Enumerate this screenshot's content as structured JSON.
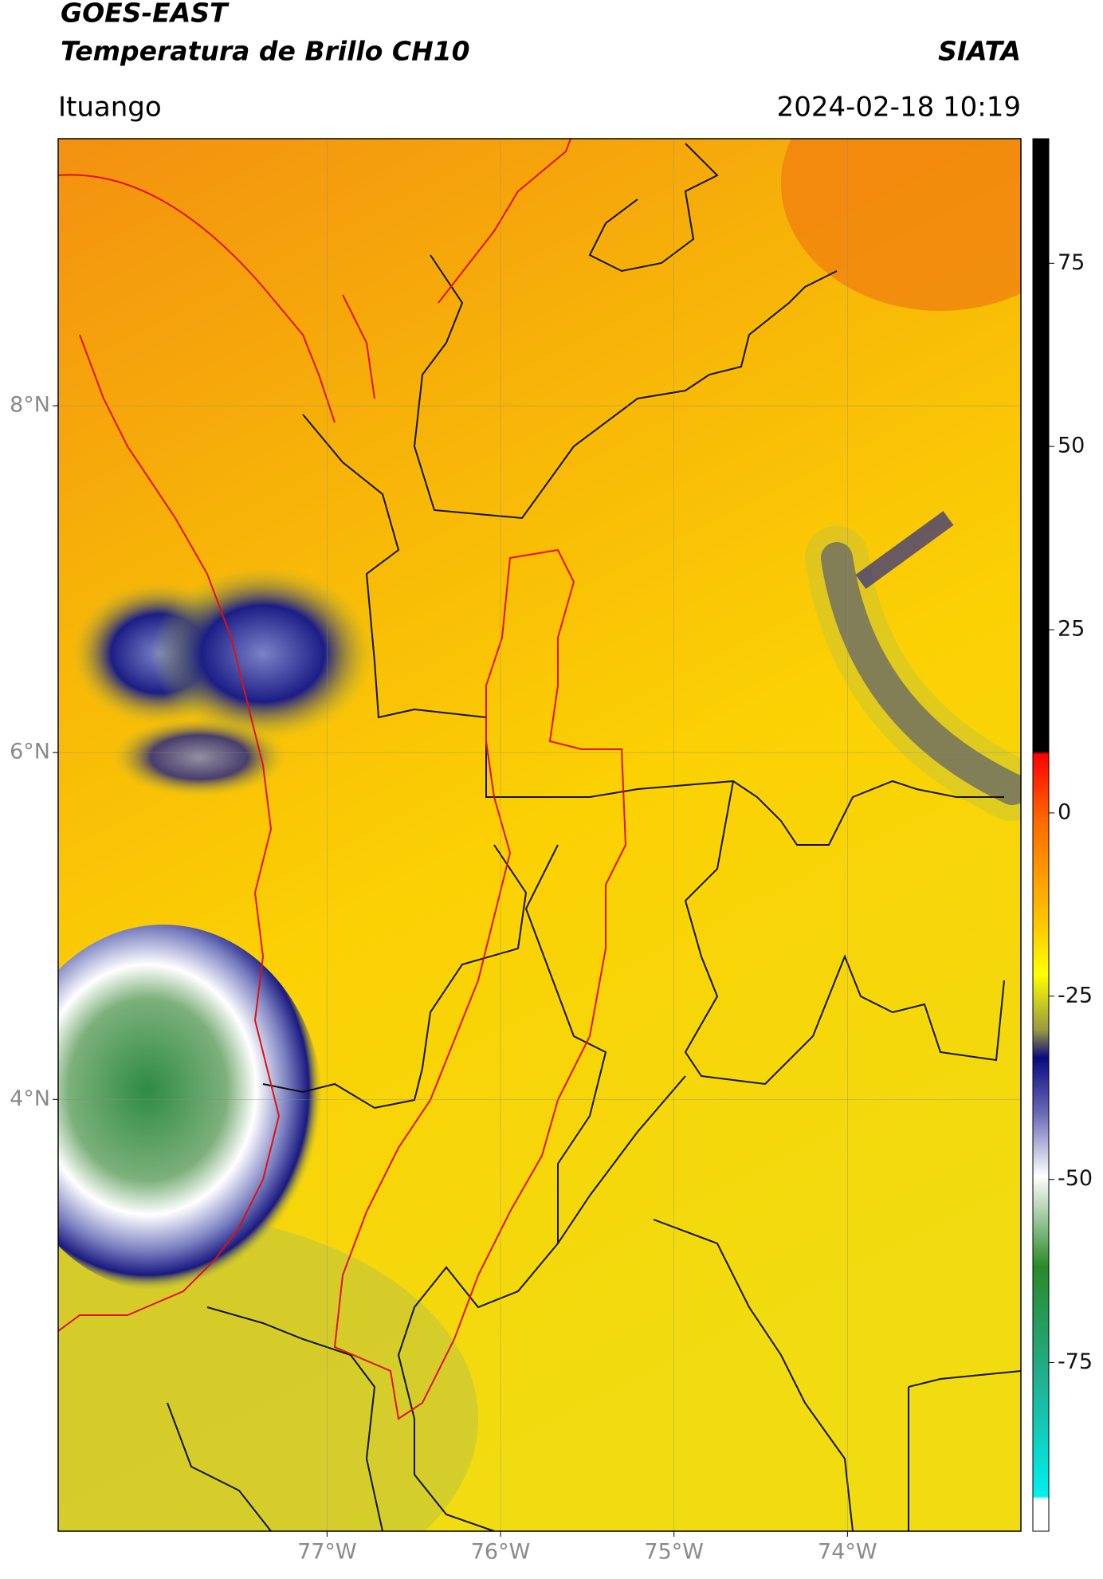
{
  "header": {
    "title": "GOES-EAST",
    "subtitle": "Temperatura de Brillo CH10",
    "source": "SIATA",
    "location": "Ituango",
    "timestamp": "2024-02-18 10:19"
  },
  "map": {
    "xlim": [
      -78.55,
      -73.0
    ],
    "ylim": [
      1.51,
      9.54
    ],
    "xticks": [
      {
        "value": -77,
        "label": "77°W"
      },
      {
        "value": -76,
        "label": "76°W"
      },
      {
        "value": -75,
        "label": "75°W"
      },
      {
        "value": -74,
        "label": "74°W"
      }
    ],
    "yticks": [
      {
        "value": 8,
        "label": "8°N"
      },
      {
        "value": 6,
        "label": "6°N"
      },
      {
        "value": 4,
        "label": "4°N"
      }
    ],
    "grid": true
  },
  "colorbar": {
    "lim": [
      -98,
      92
    ],
    "ticks": [
      75,
      50,
      25,
      0,
      -25,
      -50,
      -75
    ]
  }
}
